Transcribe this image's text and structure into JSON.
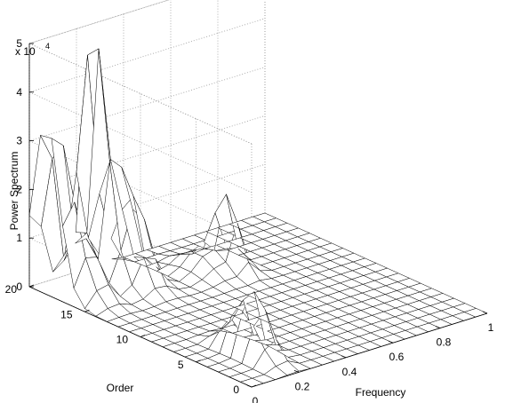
{
  "chart_data": {
    "type": "surface",
    "xlabel": "Frequency",
    "ylabel": "Order",
    "zlabel": "Power Spectrum",
    "z_multiplier_label": "x 10",
    "z_multiplier_exponent": "4",
    "xlim": [
      0,
      1
    ],
    "ylim": [
      0,
      20
    ],
    "zlim": [
      0,
      5
    ],
    "x_ticks": [
      0,
      0.2,
      0.4,
      0.6,
      0.8,
      1
    ],
    "x_tick_labels": [
      "0",
      "0.2",
      "0.4",
      "0.6",
      "0.8",
      "1"
    ],
    "y_ticks": [
      0,
      5,
      10,
      15,
      20
    ],
    "y_tick_labels": [
      "0",
      "5",
      "10",
      "15",
      "20"
    ],
    "z_ticks": [
      0,
      1,
      2,
      3,
      4,
      5
    ],
    "z_tick_labels": [
      "0",
      "1",
      "2",
      "3",
      "4",
      "5"
    ],
    "grid": true,
    "colors": {
      "face": "#ffffff",
      "edge": "#000000",
      "grid": "#999999"
    },
    "peaks": [
      {
        "frequency": 0.02,
        "order": 18.5,
        "height": 4.5,
        "spread_freq": 0.04,
        "spread_order": 1.6
      },
      {
        "frequency": 0.08,
        "order": 17.0,
        "height": 1.3,
        "spread_freq": 0.05,
        "spread_order": 2.0
      },
      {
        "frequency": 0.2,
        "order": 18.5,
        "height": 4.8,
        "spread_freq": 0.04,
        "spread_order": 1.6
      },
      {
        "frequency": 0.27,
        "order": 17.0,
        "height": 2.2,
        "spread_freq": 0.06,
        "spread_order": 2.0
      },
      {
        "frequency": 0.18,
        "order": 4.0,
        "height": 1.6,
        "spread_freq": 0.04,
        "spread_order": 2.0
      },
      {
        "frequency": 0.6,
        "order": 15.0,
        "height": 1.5,
        "spread_freq": 0.04,
        "spread_order": 1.6
      },
      {
        "frequency": 0.5,
        "order": 15.5,
        "height": 0.4,
        "spread_freq": 0.05,
        "spread_order": 2.0
      }
    ],
    "grid_resolution": {
      "frequency_steps": 20,
      "order_steps": 20
    }
  }
}
